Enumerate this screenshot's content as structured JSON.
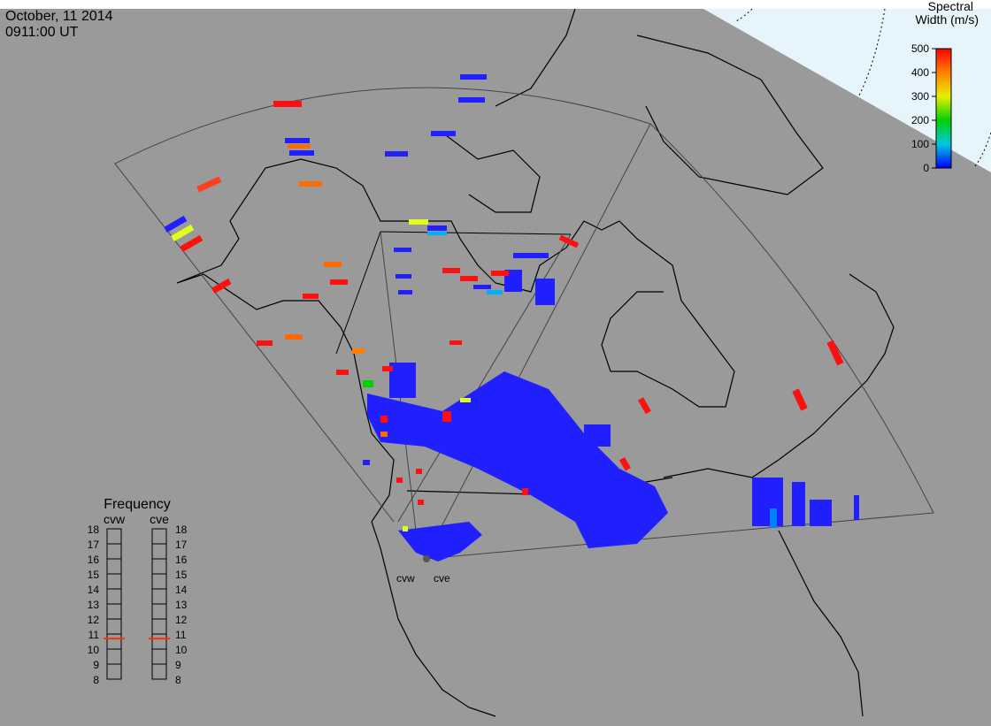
{
  "header": {
    "date": "October, 11 2014",
    "time": "0911:00 UT"
  },
  "colorbar": {
    "title": [
      "Spectral",
      "Width (m/s)"
    ],
    "ticks": [
      0,
      100,
      200,
      300,
      400,
      500
    ],
    "range": [
      0,
      500
    ]
  },
  "frequency": {
    "title": "Frequency",
    "ticks": [
      8,
      9,
      10,
      11,
      12,
      13,
      14,
      15,
      16,
      17,
      18
    ],
    "range": [
      8,
      18
    ],
    "radars": [
      {
        "name": "cvw",
        "value": 10.7
      },
      {
        "name": "cve",
        "value": 10.7
      }
    ]
  },
  "stations": [
    "cvw",
    "cve"
  ]
}
